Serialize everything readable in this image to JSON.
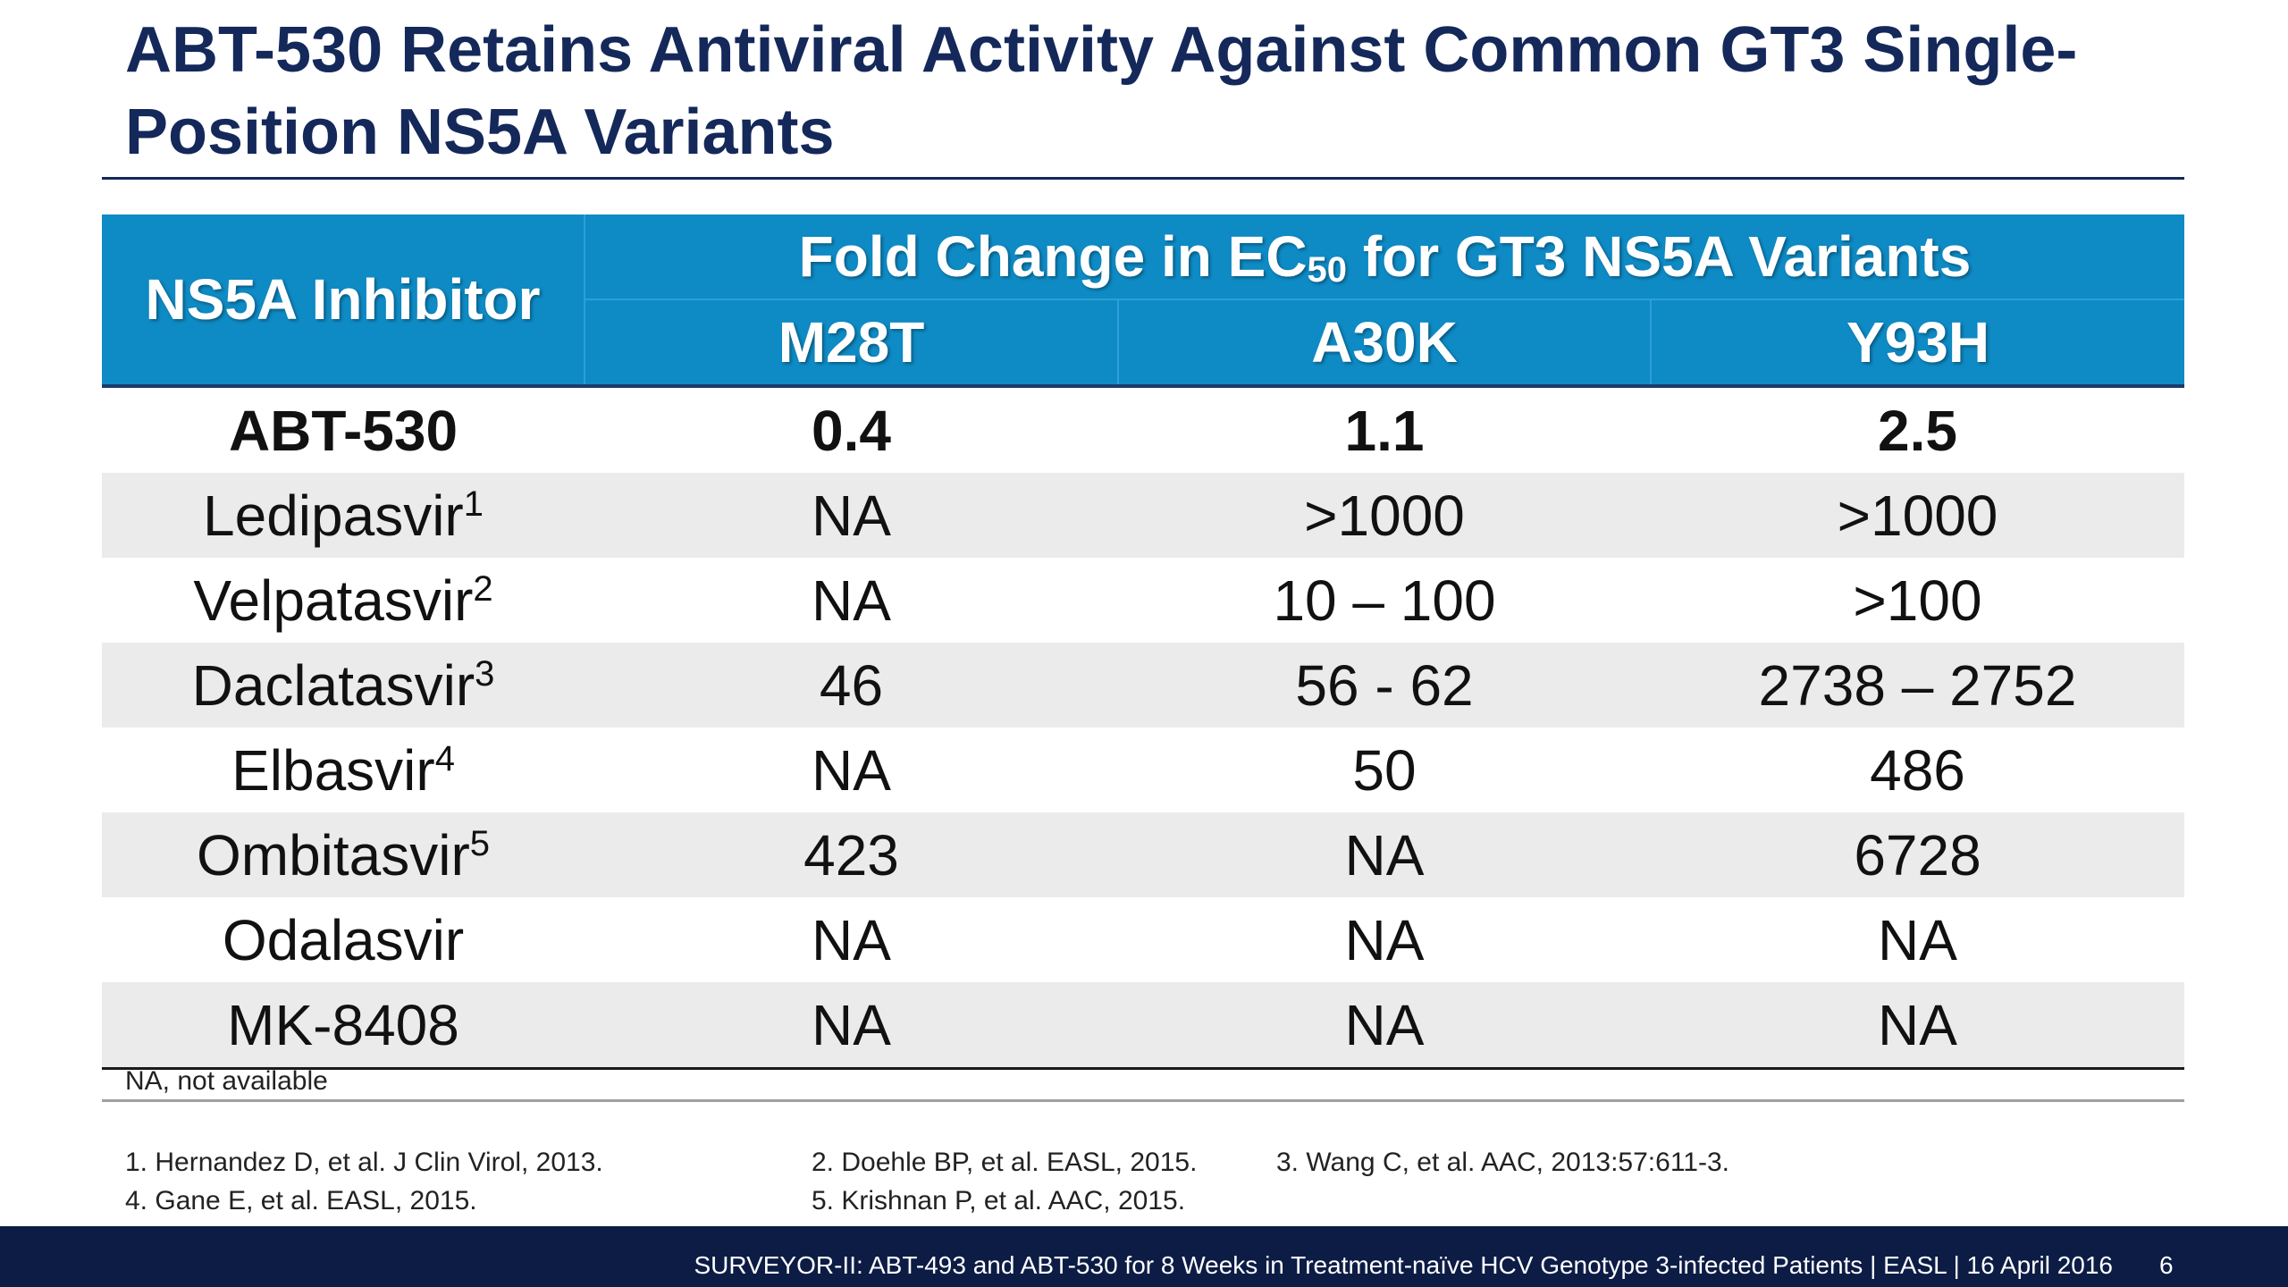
{
  "slide": {
    "title": "ABT-530 Retains Antiviral Activity Against Common GT3 Single-Position NS5A Variants"
  },
  "table": {
    "inhibitor_header": "NS5A Inhibitor",
    "group_header": {
      "prefix": "Fold Change in EC",
      "subscript": "50",
      "suffix": " for GT3 NS5A Variants"
    },
    "columns": [
      "M28T",
      "A30K",
      "Y93H"
    ],
    "rows": [
      {
        "name": "ABT-530",
        "ref": "",
        "values": [
          "0.4",
          "1.1",
          "2.5"
        ]
      },
      {
        "name": "Ledipasvir",
        "ref": "1",
        "values": [
          "NA",
          ">1000",
          ">1000"
        ]
      },
      {
        "name": "Velpatasvir",
        "ref": "2",
        "values": [
          "NA",
          "10 – 100",
          ">100"
        ]
      },
      {
        "name": "Daclatasvir",
        "ref": "3",
        "values": [
          "46",
          "56 - 62",
          "2738 – 2752"
        ]
      },
      {
        "name": "Elbasvir",
        "ref": "4",
        "values": [
          "NA",
          "50",
          "486"
        ]
      },
      {
        "name": "Ombitasvir",
        "ref": "5",
        "values": [
          "423",
          "NA",
          "6728"
        ]
      },
      {
        "name": "Odalasvir",
        "ref": "",
        "values": [
          "NA",
          "NA",
          "NA"
        ]
      },
      {
        "name": "MK-8408",
        "ref": "",
        "values": [
          "NA",
          "NA",
          "NA"
        ]
      }
    ]
  },
  "notes": {
    "abbreviation": "NA, not available",
    "references": [
      "1. Hernandez D, et al. J Clin Virol, 2013.",
      "2. Doehle BP, et al. EASL, 2015.",
      "3. Wang C, et al. AAC, 2013:57:611-3.",
      "4. Gane E, et al.  EASL, 2015.",
      "5. Krishnan P, et al. AAC, 2015."
    ]
  },
  "footer": {
    "text": "SURVEYOR-II: ABT-493 and ABT-530 for 8 Weeks in Treatment-naïve HCV Genotype 3-infected Patients  | EASL | 16 April 2016",
    "page": "6"
  }
}
